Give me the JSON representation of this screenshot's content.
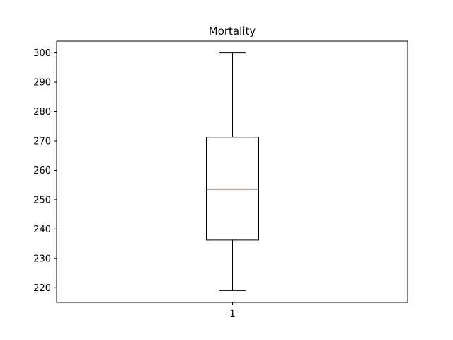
{
  "chart_data": {
    "type": "box",
    "title": "Mortality",
    "xlabel": "",
    "ylabel": "",
    "categories": [
      "1"
    ],
    "ylim": [
      215.0,
      304.0
    ],
    "yticks": [
      220,
      230,
      240,
      250,
      260,
      270,
      280,
      290,
      300
    ],
    "boxes": [
      {
        "category": "1",
        "whisker_low": 219,
        "q1": 236.25,
        "median": 253.5,
        "q3": 271.25,
        "whisker_high": 300
      }
    ],
    "colors": {
      "box": "#000000",
      "median": "#ff7f0e",
      "whisker": "#000000"
    },
    "grid": false,
    "legend": "none"
  }
}
